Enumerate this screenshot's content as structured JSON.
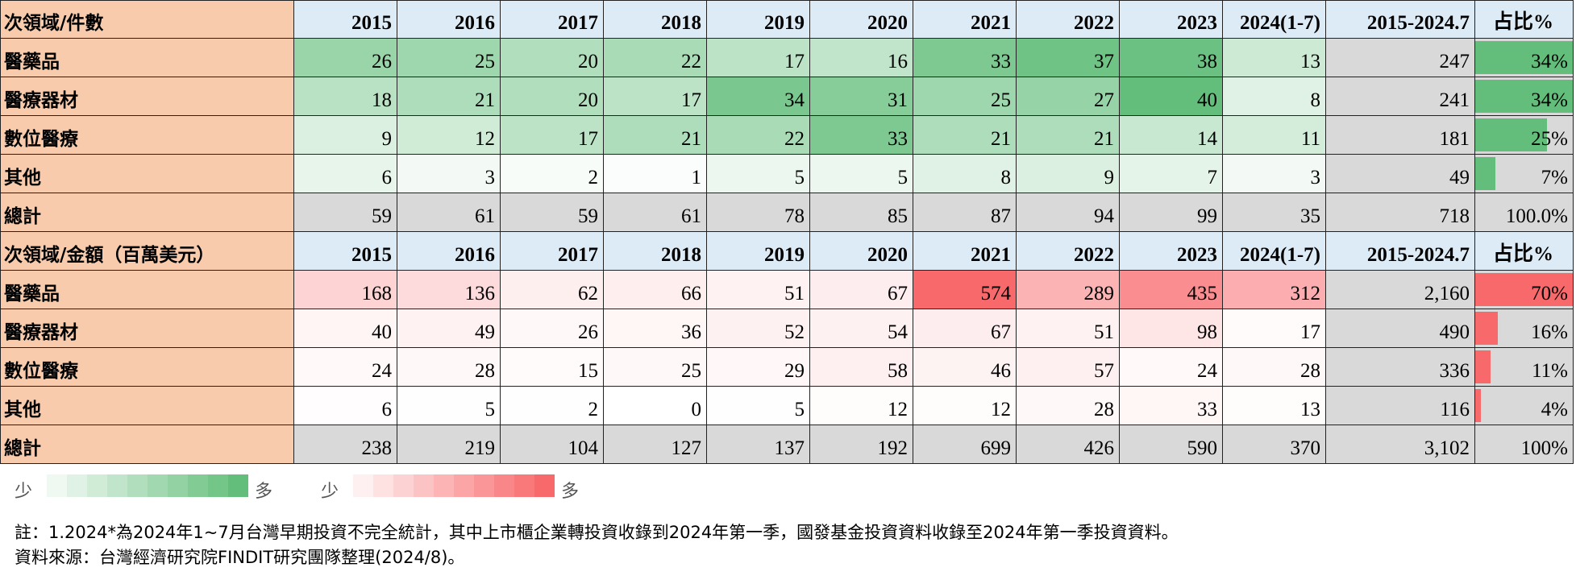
{
  "tables": [
    {
      "color": "#63be7b",
      "header": [
        "次領域/件數",
        "2015",
        "2016",
        "2017",
        "2018",
        "2019",
        "2020",
        "2021",
        "2022",
        "2023",
        "2024(1-7)",
        "2015-2024.7",
        "占比%"
      ],
      "rows": [
        {
          "label": "醫藥品",
          "values": [
            26,
            25,
            20,
            22,
            17,
            16,
            33,
            37,
            38,
            13
          ],
          "total": 247,
          "share": {
            "value": 34,
            "label": "34%"
          }
        },
        {
          "label": "醫療器材",
          "values": [
            18,
            21,
            20,
            17,
            34,
            31,
            25,
            27,
            40,
            8
          ],
          "total": 241,
          "share": {
            "value": 34,
            "label": "34%"
          }
        },
        {
          "label": "數位醫療",
          "values": [
            9,
            12,
            17,
            21,
            22,
            33,
            21,
            21,
            14,
            11
          ],
          "total": 181,
          "share": {
            "value": 25,
            "label": "25%"
          }
        },
        {
          "label": "其他",
          "values": [
            6,
            3,
            2,
            1,
            5,
            5,
            8,
            9,
            7,
            3
          ],
          "total": 49,
          "share": {
            "value": 7,
            "label": "7%"
          }
        }
      ],
      "total_row": {
        "label": "總計",
        "values": [
          59,
          61,
          59,
          61,
          78,
          85,
          87,
          94,
          99,
          35
        ],
        "total": 718,
        "share": "100.0%"
      }
    },
    {
      "color": "#f8696b",
      "header": [
        "次領域/金額（百萬美元）",
        "2015",
        "2016",
        "2017",
        "2018",
        "2019",
        "2020",
        "2021",
        "2022",
        "2023",
        "2024(1-7)",
        "2015-2024.7",
        "占比%"
      ],
      "rows": [
        {
          "label": "醫藥品",
          "values": [
            168,
            136,
            62,
            66,
            51,
            67,
            574,
            289,
            435,
            312
          ],
          "total": "2,160",
          "share": {
            "value": 70,
            "label": "70%"
          }
        },
        {
          "label": "醫療器材",
          "values": [
            40,
            49,
            26,
            36,
            52,
            54,
            67,
            51,
            98,
            17
          ],
          "total": 490,
          "share": {
            "value": 16,
            "label": "16%"
          }
        },
        {
          "label": "數位醫療",
          "values": [
            24,
            28,
            15,
            25,
            29,
            58,
            46,
            57,
            24,
            28
          ],
          "total": 336,
          "share": {
            "value": 11,
            "label": "11%"
          }
        },
        {
          "label": "其他",
          "values": [
            6,
            5,
            2,
            0,
            5,
            12,
            12,
            28,
            33,
            13
          ],
          "total": 116,
          "share": {
            "value": 4,
            "label": "4%"
          }
        }
      ],
      "total_row": {
        "label": "總計",
        "values": [
          238,
          219,
          104,
          127,
          137,
          192,
          699,
          426,
          590,
          370
        ],
        "total": "3,102",
        "share": "100%"
      }
    }
  ],
  "legend": [
    {
      "low": "少",
      "high": "多"
    },
    {
      "low": "少",
      "high": "多"
    }
  ],
  "notes": [
    "註：1.2024*為2024年1~7月台灣早期投資不完全統計，其中上市櫃企業轉投資收錄到2024年第一季，國發基金投資資料收錄至2024年第一季投資資料。",
    "資料來源：台灣經濟研究院FINDIT研究團隊整理(2024/8)。"
  ]
}
